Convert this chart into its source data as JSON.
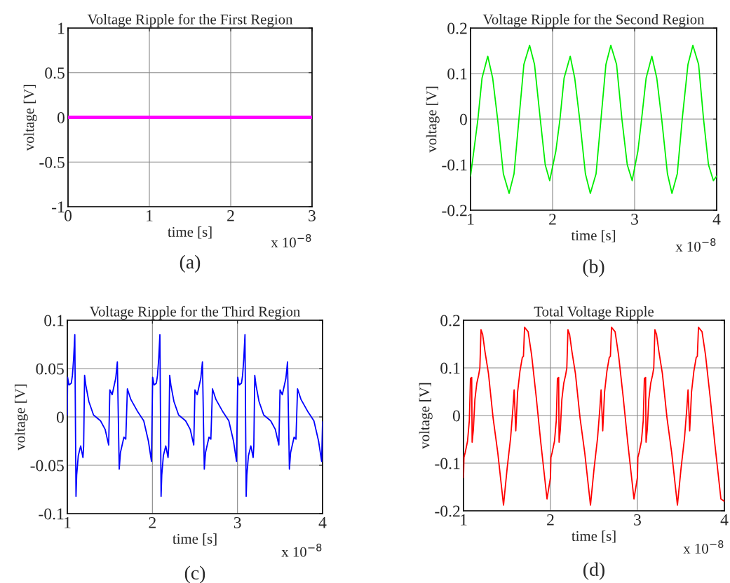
{
  "chart_data": [
    {
      "type": "line",
      "title": "Voltage Ripple for the First Region",
      "xlabel": "time [s]",
      "ylabel": "voltage [V]",
      "annotations": [
        "x 10$^{−8}$",
        "(a)"
      ],
      "xlim": [
        0,
        3
      ],
      "xticks": [
        0,
        1,
        2,
        3
      ],
      "ylim": [
        -1,
        1
      ],
      "yticks": [
        -1,
        -0.5,
        0,
        0.5,
        1
      ],
      "grid": true,
      "series": [
        {
          "color": "#ff00ff",
          "x": [
            0,
            3
          ],
          "values": [
            0,
            0
          ]
        }
      ]
    },
    {
      "type": "line",
      "title": "Voltage Ripple for the Second Region",
      "xlabel": "time [s]",
      "ylabel": "voltage [V]",
      "annotations": [
        "x 10$^{−8}$",
        "(b)"
      ],
      "xlim": [
        1,
        4
      ],
      "xticks": [
        1,
        2,
        3,
        4
      ],
      "ylim": [
        -0.2,
        0.2
      ],
      "yticks": [
        -0.2,
        -0.1,
        0,
        0.1,
        0.2
      ],
      "grid": true,
      "series": [
        {
          "color": "#00ee00",
          "x": [
            1.0,
            1.04,
            1.09,
            1.14,
            1.21,
            1.27,
            1.33,
            1.4,
            1.47,
            1.53,
            1.59,
            1.65,
            1.72,
            1.78,
            1.85,
            1.91,
            1.965,
            2.04,
            2.09,
            2.14,
            2.215,
            2.27,
            2.33,
            2.4,
            2.46,
            2.53,
            2.59,
            2.65,
            2.71,
            2.78,
            2.845,
            2.91,
            2.97,
            3.04,
            3.085,
            3.14,
            3.21,
            3.27,
            3.33,
            3.4,
            3.455,
            3.52,
            3.58,
            3.65,
            3.71,
            3.78,
            3.84,
            3.9,
            3.96,
            4.0
          ],
          "values": [
            -0.125,
            -0.07,
            0,
            0.09,
            0.138,
            0.09,
            0,
            -0.12,
            -0.163,
            -0.12,
            0,
            0.12,
            0.162,
            0.12,
            0,
            -0.1,
            -0.135,
            -0.07,
            0,
            0.09,
            0.138,
            0.09,
            0,
            -0.12,
            -0.163,
            -0.12,
            0,
            0.12,
            0.162,
            0.12,
            0,
            -0.1,
            -0.135,
            -0.07,
            0,
            0.09,
            0.138,
            0.09,
            0,
            -0.12,
            -0.163,
            -0.12,
            0,
            0.12,
            0.162,
            0.12,
            0,
            -0.1,
            -0.135,
            -0.125
          ]
        }
      ]
    },
    {
      "type": "line",
      "title": "Voltage Ripple for the Third Region",
      "xlabel": "time [s]",
      "ylabel": "voltage [V]",
      "annotations": [
        "x 10$^{−8}$",
        "(c)"
      ],
      "xlim": [
        1,
        4
      ],
      "xticks": [
        1,
        2,
        3,
        4
      ],
      "ylim": [
        -0.1,
        0.1
      ],
      "yticks": [
        -0.1,
        -0.05,
        0,
        0.05,
        0.1
      ],
      "grid": true,
      "series": [
        {
          "color": "#0000ff",
          "x": [
            1.0,
            1.003,
            1.019,
            1.047,
            1.06,
            1.074,
            1.088,
            1.102,
            1.11,
            1.129,
            1.157,
            1.184,
            1.192,
            1.203,
            1.217,
            1.253,
            1.308,
            1.39,
            1.445,
            1.486,
            1.5,
            1.527,
            1.569,
            1.588,
            1.61,
            1.624,
            1.665,
            1.687,
            1.706,
            1.747,
            1.83,
            1.898,
            1.953,
            1.989,
            2.003,
            2.019,
            2.047,
            2.06,
            2.074,
            2.088,
            2.102,
            2.11,
            2.129,
            2.157,
            2.184,
            2.192,
            2.203,
            2.217,
            2.253,
            2.308,
            2.39,
            2.445,
            2.486,
            2.5,
            2.527,
            2.569,
            2.588,
            2.61,
            2.624,
            2.665,
            2.687,
            2.706,
            2.747,
            2.83,
            2.898,
            2.953,
            2.989,
            3.003,
            3.019,
            3.047,
            3.06,
            3.074,
            3.088,
            3.102,
            3.11,
            3.129,
            3.157,
            3.184,
            3.192,
            3.203,
            3.217,
            3.253,
            3.308,
            3.39,
            3.445,
            3.486,
            3.5,
            3.527,
            3.569,
            3.588,
            3.61,
            3.624,
            3.665,
            3.687,
            3.706,
            3.747,
            3.83,
            3.898,
            3.953,
            3.989,
            4.0
          ],
          "values": [
            0.002,
            0.041,
            0.033,
            0.035,
            0.043,
            0.06,
            0.085,
            -0.082,
            -0.06,
            -0.04,
            -0.03,
            -0.042,
            -0.03,
            0.043,
            0.033,
            0.016,
            0.002,
            -0.004,
            -0.013,
            -0.029,
            0.028,
            0.023,
            0.04,
            0.057,
            -0.054,
            -0.037,
            -0.021,
            -0.023,
            0.029,
            0.018,
            0.005,
            -0.004,
            -0.025,
            -0.046,
            0.041,
            0.033,
            0.035,
            0.043,
            0.06,
            0.085,
            -0.082,
            -0.06,
            -0.04,
            -0.03,
            -0.042,
            -0.03,
            0.043,
            0.033,
            0.016,
            0.002,
            -0.004,
            -0.013,
            -0.029,
            0.028,
            0.023,
            0.04,
            0.057,
            -0.054,
            -0.037,
            -0.021,
            -0.023,
            0.029,
            0.018,
            0.005,
            -0.004,
            -0.025,
            -0.046,
            0.041,
            0.033,
            0.035,
            0.043,
            0.06,
            0.085,
            -0.082,
            -0.06,
            -0.04,
            -0.03,
            -0.042,
            -0.03,
            0.043,
            0.033,
            0.016,
            0.002,
            -0.004,
            -0.013,
            -0.029,
            0.028,
            0.023,
            0.04,
            0.057,
            -0.054,
            -0.037,
            -0.021,
            -0.023,
            0.029,
            0.018,
            0.005,
            -0.004,
            -0.025,
            -0.046,
            -0.005
          ]
        }
      ]
    },
    {
      "type": "line",
      "title": "Total Voltage Ripple",
      "xlabel": "time [s]",
      "ylabel": "voltage [V]",
      "annotations": [
        "x 10$^{−8}$",
        "(d)"
      ],
      "xlim": [
        1,
        4
      ],
      "xticks": [
        1,
        2,
        3,
        4
      ],
      "ylim": [
        -0.2,
        0.2
      ],
      "yticks": [
        -0.2,
        -0.1,
        0,
        0.1,
        0.2
      ],
      "grid": true,
      "series": [
        {
          "color": "#ff0000",
          "x": [
            1.0,
            1.005,
            1.019,
            1.046,
            1.067,
            1.08,
            1.094,
            1.099,
            1.113,
            1.131,
            1.153,
            1.174,
            1.188,
            1.201,
            1.22,
            1.247,
            1.287,
            1.34,
            1.394,
            1.46,
            1.501,
            1.542,
            1.568,
            1.582,
            1.601,
            1.622,
            1.649,
            1.676,
            1.689,
            1.702,
            1.743,
            1.783,
            1.836,
            1.89,
            1.96,
            2.0,
            2.005,
            2.019,
            2.046,
            2.067,
            2.08,
            2.094,
            2.099,
            2.113,
            2.131,
            2.153,
            2.174,
            2.188,
            2.201,
            2.22,
            2.247,
            2.287,
            2.34,
            2.394,
            2.46,
            2.501,
            2.542,
            2.568,
            2.582,
            2.601,
            2.622,
            2.649,
            2.676,
            2.689,
            2.702,
            2.743,
            2.783,
            2.836,
            2.89,
            2.96,
            3.0,
            3.005,
            3.019,
            3.046,
            3.067,
            3.08,
            3.094,
            3.099,
            3.113,
            3.131,
            3.153,
            3.174,
            3.188,
            3.201,
            3.22,
            3.247,
            3.287,
            3.34,
            3.394,
            3.46,
            3.501,
            3.542,
            3.568,
            3.582,
            3.601,
            3.622,
            3.649,
            3.676,
            3.689,
            3.702,
            3.743,
            3.783,
            3.836,
            3.89,
            3.96,
            4.0
          ],
          "values": [
            -0.13,
            -0.088,
            -0.078,
            -0.054,
            -0.01,
            0.078,
            0.08,
            -0.056,
            -0.03,
            0.034,
            0.068,
            0.085,
            0.1,
            0.18,
            0.17,
            0.134,
            0.088,
            -0.005,
            -0.078,
            -0.188,
            -0.112,
            -0.046,
            0.015,
            0.054,
            -0.032,
            0.049,
            0.093,
            0.122,
            0.124,
            0.185,
            0.176,
            0.127,
            0.039,
            -0.059,
            -0.175,
            -0.13,
            -0.088,
            -0.078,
            -0.054,
            -0.01,
            0.078,
            0.08,
            -0.056,
            -0.03,
            0.034,
            0.068,
            0.085,
            0.1,
            0.18,
            0.17,
            0.134,
            0.088,
            -0.005,
            -0.078,
            -0.188,
            -0.112,
            -0.046,
            0.015,
            0.054,
            -0.032,
            0.049,
            0.093,
            0.122,
            0.124,
            0.185,
            0.176,
            0.127,
            0.039,
            -0.059,
            -0.175,
            -0.13,
            -0.088,
            -0.078,
            -0.054,
            -0.01,
            0.078,
            0.08,
            -0.056,
            -0.03,
            0.034,
            0.068,
            0.085,
            0.1,
            0.18,
            0.17,
            0.134,
            0.088,
            -0.005,
            -0.078,
            -0.188,
            -0.112,
            -0.046,
            0.015,
            0.054,
            -0.032,
            0.049,
            0.093,
            0.122,
            0.124,
            0.185,
            0.176,
            0.127,
            0.039,
            -0.059,
            -0.175,
            -0.18
          ]
        }
      ]
    }
  ]
}
